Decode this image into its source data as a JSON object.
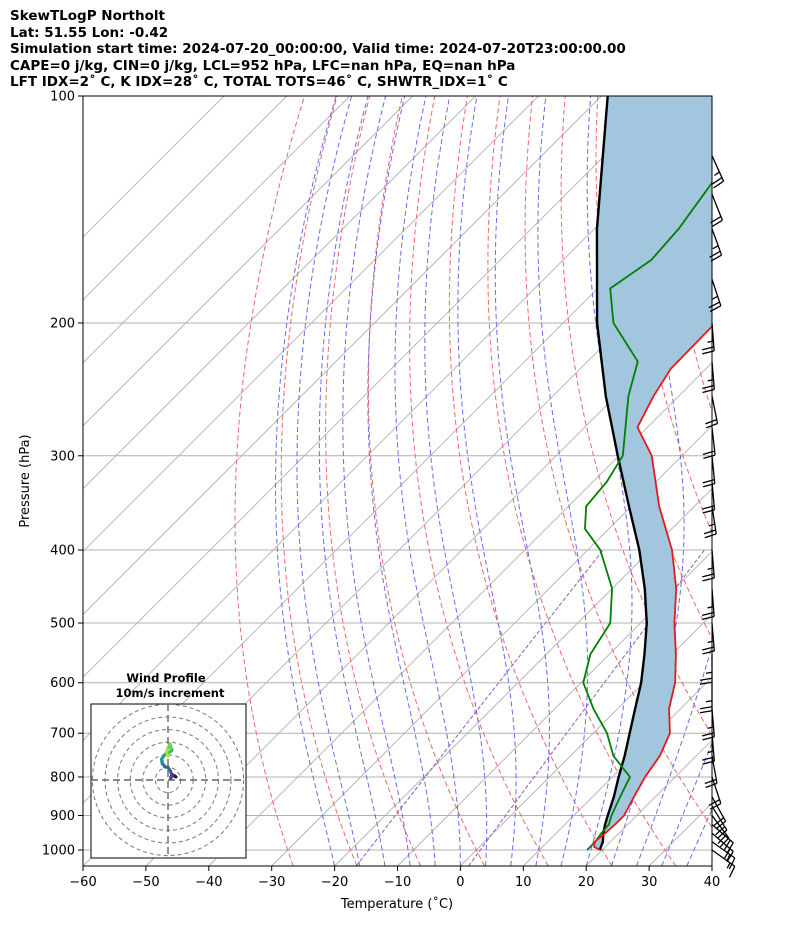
{
  "header": {
    "line1": "SkewTLogP Northolt",
    "line2": "Lat: 51.55   Lon: -0.42",
    "line3": "Simulation start time: 2024-07-20_00:00:00, Valid time: 2024-07-20T23:00:00.00",
    "line4": "CAPE=0 j/kg, CIN=0 j/kg, LCL=952 hPa, LFC=nan hPa, EQ=nan hPa",
    "line5": "LFT IDX=2˚ C, K IDX=28˚ C, TOTAL TOTS=46˚ C, SHWTR_IDX=1˚ C"
  },
  "chart_data": {
    "type": "line",
    "subtype": "skew-t log-p",
    "xlabel": "Temperature (˚C)",
    "ylabel": "Pressure (hPa)",
    "xlim": [
      -60,
      40
    ],
    "ylim": [
      1050,
      100
    ],
    "y_scale": "log",
    "x_ticks": [
      -60,
      -50,
      -40,
      -30,
      -20,
      -10,
      0,
      10,
      20,
      30,
      40
    ],
    "x_tick_labels": [
      "−60",
      "−50",
      "−40",
      "−30",
      "−20",
      "−10",
      "0",
      "10",
      "20",
      "30",
      "40"
    ],
    "y_ticks": [
      1000,
      900,
      800,
      700,
      600,
      500,
      400,
      300,
      200,
      100
    ],
    "y_tick_labels": [
      "1000",
      "900",
      "800",
      "700",
      "600",
      "500",
      "400",
      "300",
      "200",
      "100"
    ],
    "grid": true,
    "colors": {
      "temperature": "#e31a1c",
      "dewpoint": "#008000",
      "parcel": "#000000",
      "shading": "#a3c6df",
      "dry_adiabat": "#f26666",
      "moist_adiabat": "#6a6aee",
      "mixing_ratio": "#9955c8",
      "isotherm": "#b0b0b0"
    },
    "series": [
      {
        "key": "temperature",
        "points": [
          [
            1000,
            19.6
          ],
          [
            990,
            18.2
          ],
          [
            975,
            17.5
          ],
          [
            950,
            17.8
          ],
          [
            925,
            18.0
          ],
          [
            900,
            18.0
          ],
          [
            850,
            16.6
          ],
          [
            800,
            15.2
          ],
          [
            750,
            14.2
          ],
          [
            700,
            12.2
          ],
          [
            650,
            8.2
          ],
          [
            600,
            5.0
          ],
          [
            550,
            0.6
          ],
          [
            500,
            -4.6
          ],
          [
            450,
            -9.8
          ],
          [
            400,
            -16.6
          ],
          [
            350,
            -25.6
          ],
          [
            300,
            -34.8
          ],
          [
            275,
            -41.6
          ],
          [
            250,
            -44.0
          ],
          [
            230,
            -45.6
          ],
          [
            200,
            -45.8
          ],
          [
            185,
            -47.2
          ],
          [
            160,
            -49.4
          ],
          [
            140,
            -51.8
          ],
          [
            120,
            -55.0
          ],
          [
            100,
            -60.0
          ]
        ]
      },
      {
        "key": "dewpoint",
        "points": [
          [
            1000,
            17.6
          ],
          [
            975,
            17.6
          ],
          [
            950,
            17.2
          ],
          [
            925,
            17.0
          ],
          [
            900,
            16.0
          ],
          [
            850,
            14.4
          ],
          [
            800,
            12.8
          ],
          [
            750,
            6.8
          ],
          [
            700,
            2.2
          ],
          [
            650,
            -3.8
          ],
          [
            600,
            -9.6
          ],
          [
            550,
            -13.0
          ],
          [
            500,
            -14.8
          ],
          [
            450,
            -20.0
          ],
          [
            400,
            -28.0
          ],
          [
            375,
            -33.8
          ],
          [
            350,
            -37.2
          ],
          [
            325,
            -37.8
          ],
          [
            300,
            -39.4
          ],
          [
            250,
            -48.0
          ],
          [
            225,
            -52.0
          ],
          [
            200,
            -62.0
          ],
          [
            180,
            -68.0
          ],
          [
            165,
            -66.0
          ],
          [
            150,
            -66.6
          ],
          [
            120,
            -69.8
          ],
          [
            100,
            -70.4
          ]
        ]
      },
      {
        "key": "parcel",
        "points": [
          [
            1000,
            19.6
          ],
          [
            975,
            18.8
          ],
          [
            952,
            17.6
          ],
          [
            925,
            16.4
          ],
          [
            900,
            15.4
          ],
          [
            850,
            13.4
          ],
          [
            800,
            11.0
          ],
          [
            750,
            8.6
          ],
          [
            700,
            5.8
          ],
          [
            650,
            2.8
          ],
          [
            600,
            -0.4
          ],
          [
            550,
            -4.4
          ],
          [
            500,
            -9.0
          ],
          [
            450,
            -14.8
          ],
          [
            400,
            -21.8
          ],
          [
            350,
            -30.4
          ],
          [
            300,
            -40.2
          ],
          [
            250,
            -51.6
          ],
          [
            200,
            -64.6
          ],
          [
            150,
            -79.6
          ],
          [
            100,
            -99.0
          ]
        ]
      }
    ],
    "hodograph": {
      "title": "Wind Profile",
      "subtitle": "10m/s increment",
      "ring_step_ms": 10,
      "u_ms": [
        6.3,
        5.5,
        4.8,
        4.0,
        3.2,
        2.5,
        2.2,
        2.5,
        3.0,
        2.0,
        0.0,
        -2.5,
        -3.5,
        -4.5,
        -4.8,
        -5.0,
        -3.5,
        -1.5,
        1.0,
        2.5,
        3.0,
        2.5,
        1.5,
        0.5,
        -0.5,
        -1.0,
        -0.5,
        0.2
      ],
      "v_ms": [
        2.5,
        3.0,
        3.5,
        4.0,
        3.8,
        2.5,
        1.5,
        2.0,
        4.0,
        7.0,
        10.0,
        10.5,
        12.0,
        13.0,
        15.0,
        16.5,
        19.0,
        21.0,
        22.0,
        23.0,
        24.0,
        25.5,
        28.5,
        26.0,
        24.0,
        22.0,
        20.0,
        19.0
      ]
    },
    "wind_barbs": [
      {
        "p": 1000,
        "u": -7,
        "v": 5
      },
      {
        "p": 975,
        "u": -7,
        "v": 5
      },
      {
        "p": 950,
        "u": -7,
        "v": 6
      },
      {
        "p": 925,
        "u": -7,
        "v": 6
      },
      {
        "p": 900,
        "u": -6,
        "v": 8
      },
      {
        "p": 875,
        "u": -5,
        "v": 8
      },
      {
        "p": 850,
        "u": -5,
        "v": 9
      },
      {
        "p": 800,
        "u": -3,
        "v": 9
      },
      {
        "p": 750,
        "u": -2,
        "v": 11
      },
      {
        "p": 700,
        "u": -1,
        "v": 12
      },
      {
        "p": 650,
        "u": -1,
        "v": 12
      },
      {
        "p": 600,
        "u": 0,
        "v": 13
      },
      {
        "p": 550,
        "u": 0,
        "v": 13
      },
      {
        "p": 500,
        "u": -1,
        "v": 12
      },
      {
        "p": 450,
        "u": -1,
        "v": 13
      },
      {
        "p": 400,
        "u": -1,
        "v": 12
      },
      {
        "p": 350,
        "u": -2,
        "v": 13
      },
      {
        "p": 325,
        "u": -1,
        "v": 11
      },
      {
        "p": 300,
        "u": -1,
        "v": 10
      },
      {
        "p": 275,
        "u": -1,
        "v": 9
      },
      {
        "p": 250,
        "u": -2,
        "v": 10
      },
      {
        "p": 225,
        "u": -1,
        "v": 12
      },
      {
        "p": 200,
        "u": -1,
        "v": 13
      },
      {
        "p": 175,
        "u": -4,
        "v": 12
      },
      {
        "p": 150,
        "u": -4,
        "v": 11
      },
      {
        "p": 135,
        "u": -4,
        "v": 10
      },
      {
        "p": 120,
        "u": -5,
        "v": 11
      }
    ]
  }
}
